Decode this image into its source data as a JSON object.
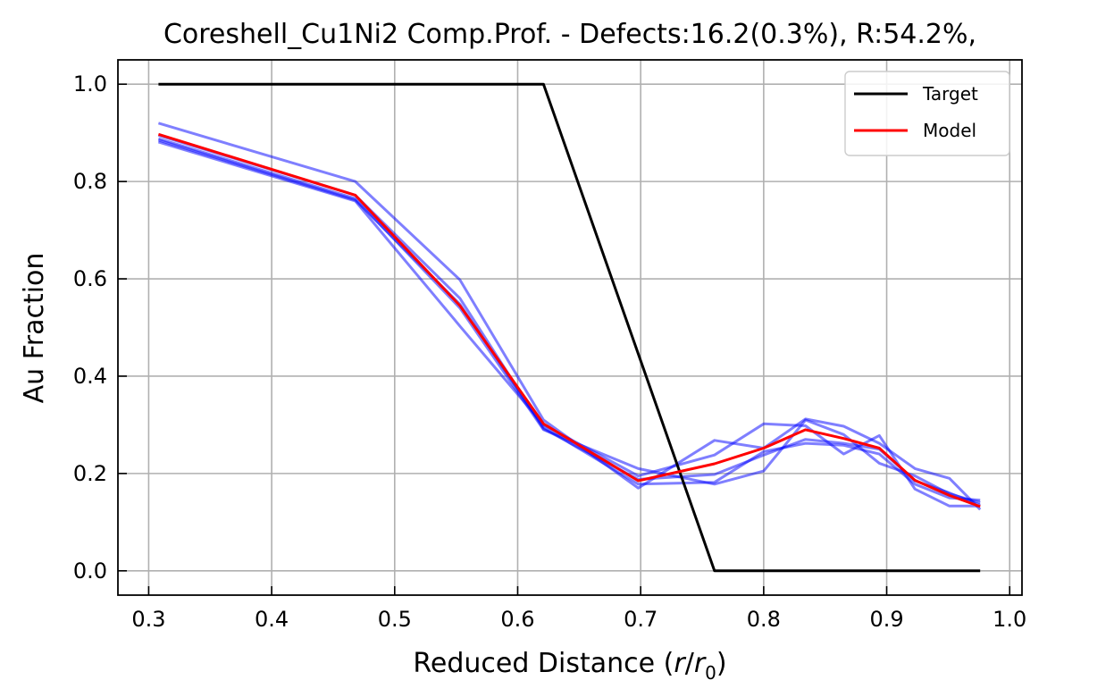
{
  "chart_data": {
    "type": "line",
    "title": "Coreshell_Cu1Ni2 Comp.Prof. - Defects:16.2(0.3%), R:54.2%,",
    "xlabel_main": "Reduced Distance (",
    "xlabel_r": "r",
    "xlabel_slash": "/",
    "xlabel_r0": "r",
    "xlabel_sub": "0",
    "xlabel_close": ")",
    "ylabel": "Au Fraction",
    "xlim": [
      0.275,
      1.01
    ],
    "ylim": [
      -0.05,
      1.05
    ],
    "xticks": [
      0.3,
      0.4,
      0.5,
      0.6,
      0.7,
      0.8,
      0.9,
      1.0
    ],
    "yticks": [
      0.0,
      0.2,
      0.4,
      0.6,
      0.8,
      1.0
    ],
    "grid": true,
    "legend_position": "top-right",
    "legend": [
      "Target",
      "Model"
    ],
    "colors": {
      "target": "#000000",
      "model": "#ff0000",
      "samples": "#0000ff"
    },
    "series": [
      {
        "name": "Target",
        "x": [
          0.308,
          0.621,
          0.76,
          0.976
        ],
        "y": [
          1.0,
          1.0,
          0.0,
          0.0
        ]
      },
      {
        "name": "Model",
        "x": [
          0.308,
          0.468,
          0.553,
          0.621,
          0.698,
          0.76,
          0.8,
          0.834,
          0.865,
          0.894,
          0.923,
          0.951,
          0.976
        ],
        "y": [
          0.897,
          0.772,
          0.545,
          0.302,
          0.185,
          0.22,
          0.252,
          0.29,
          0.272,
          0.252,
          0.186,
          0.155,
          0.132
        ]
      }
    ],
    "samples": [
      {
        "x": [
          0.308,
          0.468,
          0.553,
          0.621,
          0.698,
          0.76,
          0.8,
          0.834,
          0.865,
          0.894,
          0.923,
          0.951,
          0.976
        ],
        "y": [
          0.92,
          0.8,
          0.598,
          0.31,
          0.17,
          0.268,
          0.252,
          0.312,
          0.297,
          0.262,
          0.21,
          0.19,
          0.126
        ]
      },
      {
        "x": [
          0.308,
          0.468,
          0.553,
          0.621,
          0.698,
          0.76,
          0.8,
          0.834,
          0.865,
          0.894,
          0.923,
          0.951,
          0.976
        ],
        "y": [
          0.881,
          0.76,
          0.503,
          0.3,
          0.195,
          0.238,
          0.302,
          0.298,
          0.24,
          0.278,
          0.168,
          0.133,
          0.133
        ]
      },
      {
        "x": [
          0.308,
          0.468,
          0.553,
          0.621,
          0.698,
          0.76,
          0.8,
          0.834,
          0.865,
          0.894,
          0.923,
          0.951,
          0.976
        ],
        "y": [
          0.888,
          0.765,
          0.54,
          0.29,
          0.21,
          0.178,
          0.205,
          0.31,
          0.28,
          0.221,
          0.195,
          0.158,
          0.14
        ]
      },
      {
        "x": [
          0.308,
          0.468,
          0.553,
          0.621,
          0.698,
          0.76,
          0.8,
          0.834,
          0.865,
          0.894,
          0.923,
          0.951,
          0.976
        ],
        "y": [
          0.885,
          0.762,
          0.548,
          0.295,
          0.178,
          0.182,
          0.245,
          0.262,
          0.258,
          0.24,
          0.178,
          0.15,
          0.145
        ]
      },
      {
        "x": [
          0.308,
          0.468,
          0.553,
          0.621,
          0.698,
          0.76,
          0.8,
          0.834,
          0.865,
          0.894,
          0.923,
          0.951,
          0.976
        ],
        "y": [
          0.895,
          0.772,
          0.56,
          0.292,
          0.188,
          0.198,
          0.238,
          0.27,
          0.262,
          0.25,
          0.185,
          0.16,
          0.135
        ]
      }
    ]
  }
}
